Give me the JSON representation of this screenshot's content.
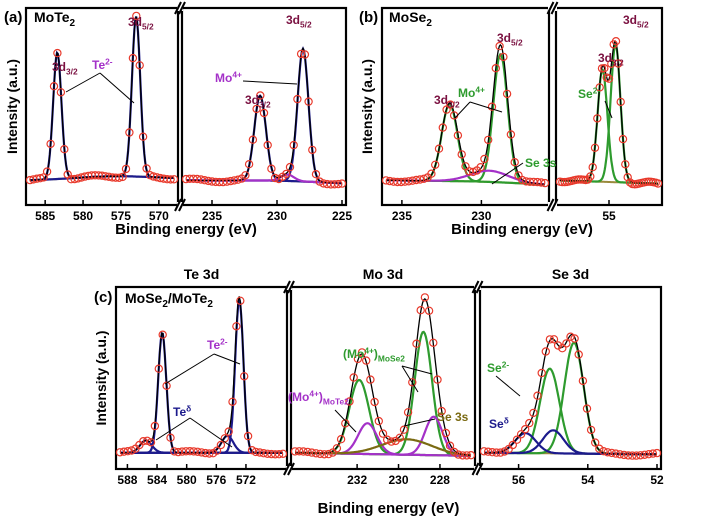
{
  "colors": {
    "frame": "#000000",
    "marker": "#e8392b",
    "fit": "#000000",
    "component": "#1c1a8c",
    "label_state": "#7a1040",
    "te": "#a431c8",
    "mo": "#2e9b2e",
    "se3s": "#7a6a12",
    "background": "#9a8a3c",
    "te_delta": "#1c1a8c",
    "se_delta": "#1c1a8c"
  },
  "chart_data": [
    {
      "id": "a",
      "panel_label": "(a)",
      "title": "MoTe",
      "title_sub": "2",
      "type": "line",
      "xlabel": "Binding energy (eV)",
      "ylabel": "Intensity (a.u.)",
      "segments": [
        {
          "xlim": [
            587,
            568
          ],
          "ticks": [
            585,
            580,
            575,
            570
          ],
          "tick_labels": [
            "585",
            "580",
            "575",
            "570"
          ],
          "peaks": [
            {
              "name": "3d3/2",
              "center": 583.4,
              "height": 0.79,
              "width": 0.55,
              "color_key": "component"
            },
            {
              "name": "3d5/2",
              "center": 573.0,
              "height": 1.0,
              "width": 0.55,
              "color_key": "component"
            }
          ],
          "background": {
            "start": 0.06,
            "end": 0.07,
            "bump_center": 576,
            "bump_height": 0.02,
            "bump_width": 5
          }
        },
        {
          "xlim": [
            237,
            225
          ],
          "ticks": [
            235,
            230,
            225
          ],
          "tick_labels": [
            "235",
            "230",
            "225"
          ],
          "peaks": [
            {
              "name": "3d3/2",
              "center": 231.3,
              "height": 0.53,
              "width": 0.45,
              "color_key": "component"
            },
            {
              "name": "3d5/2",
              "center": 228.0,
              "height": 0.83,
              "width": 0.42,
              "color_key": "component"
            },
            {
              "name": "Te2- shoulder",
              "center": 229.2,
              "height": 0.04,
              "width": 0.5,
              "color_key": "te"
            }
          ],
          "background": {
            "start": 0.06,
            "end": 0.04,
            "bump_center": 230,
            "bump_height": 0.01,
            "bump_width": 3
          }
        }
      ],
      "annotations": [
        {
          "text": "3d",
          "sub": "3/2",
          "color_key": "label_state"
        },
        {
          "text": "Te",
          "sup": "2-",
          "color_key": "te"
        },
        {
          "text": "3d",
          "sub": "5/2",
          "color_key": "label_state"
        },
        {
          "text": "Mo",
          "sup": "4+",
          "color_key": "te"
        },
        {
          "text": "3d",
          "sub": "5/2",
          "color_key": "label_state"
        },
        {
          "text": "3d",
          "sub": "3/2",
          "color_key": "label_state"
        }
      ]
    },
    {
      "id": "b",
      "panel_label": "(b)",
      "title": "MoSe",
      "title_sub": "2",
      "type": "line",
      "xlabel": "Binding energy (eV)",
      "ylabel": "Intensity (a.u.)",
      "segments": [
        {
          "xlim": [
            236,
            226
          ],
          "ticks": [
            235,
            230
          ],
          "tick_labels": [
            "235",
            "230"
          ],
          "peaks": [
            {
              "name": "3d3/2",
              "center": 232.0,
              "height": 0.48,
              "width": 0.5,
              "color_key": "mo"
            },
            {
              "name": "3d5/2",
              "center": 228.8,
              "height": 0.8,
              "width": 0.45,
              "color_key": "mo"
            },
            {
              "name": "Se 3s",
              "center": 229.5,
              "height": 0.07,
              "width": 1.2,
              "color_key": "te"
            }
          ],
          "background": {
            "start": 0.06,
            "end": 0.03,
            "bump_center": 230,
            "bump_height": 0.01,
            "bump_width": 3
          }
        },
        {
          "xlim": [
            58,
            52
          ],
          "ticks": [
            55
          ],
          "tick_labels": [
            "55"
          ],
          "peaks": [
            {
              "name": "3d3/2",
              "center": 55.4,
              "height": 0.7,
              "width": 0.3,
              "color_key": "mo"
            },
            {
              "name": "3d5/2",
              "center": 54.6,
              "height": 0.86,
              "width": 0.3,
              "color_key": "mo"
            }
          ],
          "background": {
            "start": 0.06,
            "end": 0.04,
            "bump_center": 55,
            "bump_height": 0.0,
            "bump_width": 2
          }
        }
      ],
      "annotations": [
        {
          "text": "3d",
          "sub": "3/2",
          "color_key": "label_state"
        },
        {
          "text": "Mo",
          "sup": "4+",
          "color_key": "mo"
        },
        {
          "text": "3d",
          "sub": "5/2",
          "color_key": "label_state"
        },
        {
          "text": "Se 3s",
          "color_key": "mo"
        },
        {
          "text": "3d",
          "sub": "3/2",
          "color_key": "label_state"
        },
        {
          "text": "3d",
          "sub": "5/2",
          "color_key": "label_state"
        },
        {
          "text": "Se",
          "sup": "2-",
          "color_key": "mo"
        }
      ]
    },
    {
      "id": "c",
      "panel_label": "(c)",
      "title": "MoSe",
      "title_sub": "2",
      "title_rest": "/MoTe",
      "title_sub2": "2",
      "type": "line",
      "xlabel": "Binding energy (eV)",
      "ylabel": "Intensity (a.u.)",
      "segment_titles": [
        "Te 3d",
        "Mo 3d",
        "Se 3d"
      ],
      "segments": [
        {
          "xlim": [
            589,
            567
          ],
          "ticks": [
            588,
            584,
            580,
            576,
            572
          ],
          "tick_labels": [
            "588",
            "584",
            "580",
            "576",
            "572"
          ],
          "peaks": [
            {
              "name": "Te2- 3d3/2",
              "center": 583.3,
              "height": 0.78,
              "width": 0.55,
              "color_key": "component"
            },
            {
              "name": "Te2- 3d5/2",
              "center": 572.9,
              "height": 1.0,
              "width": 0.55,
              "color_key": "component"
            },
            {
              "name": "Te delta 3d3/2",
              "center": 585.5,
              "height": 0.08,
              "width": 0.8,
              "color_key": "te_delta"
            },
            {
              "name": "Te delta 3d5/2",
              "center": 574.5,
              "height": 0.11,
              "width": 0.8,
              "color_key": "te_delta"
            }
          ],
          "background": {
            "start": 0.06,
            "end": 0.06,
            "bump_center": 578,
            "bump_height": 0.0,
            "bump_width": 5
          }
        },
        {
          "xlim": [
            235,
            226.5
          ],
          "ticks": [
            232,
            230,
            228
          ],
          "tick_labels": [
            "232",
            "230",
            "228"
          ],
          "peaks": [
            {
              "name": "MoSe2 3d3/2",
              "center": 231.9,
              "height": 0.48,
              "width": 0.48,
              "color_key": "mo"
            },
            {
              "name": "MoSe2 3d5/2",
              "center": 228.8,
              "height": 0.8,
              "width": 0.42,
              "color_key": "mo"
            },
            {
              "name": "MoTe2 3d3/2",
              "center": 231.5,
              "height": 0.2,
              "width": 0.45,
              "color_key": "te"
            },
            {
              "name": "MoTe2 3d5/2",
              "center": 228.3,
              "height": 0.25,
              "width": 0.42,
              "color_key": "te"
            },
            {
              "name": "Se 3s",
              "center": 229.6,
              "height": 0.1,
              "width": 1.2,
              "color_key": "se3s"
            }
          ],
          "background": {
            "start": 0.06,
            "end": 0.04,
            "bump_center": 230,
            "bump_height": 0.0,
            "bump_width": 3
          }
        },
        {
          "xlim": [
            57,
            52
          ],
          "ticks": [
            56,
            54,
            52
          ],
          "tick_labels": [
            "56",
            "54",
            "52"
          ],
          "peaks": [
            {
              "name": "Se2- 3d3/2",
              "center": 55.1,
              "height": 0.55,
              "width": 0.28,
              "color_key": "mo"
            },
            {
              "name": "Se2- 3d5/2",
              "center": 54.4,
              "height": 0.72,
              "width": 0.28,
              "color_key": "mo"
            },
            {
              "name": "Se delta 3d3/2",
              "center": 55.8,
              "height": 0.13,
              "width": 0.3,
              "color_key": "se_delta"
            },
            {
              "name": "Se delta 3d5/2",
              "center": 55.0,
              "height": 0.15,
              "width": 0.3,
              "color_key": "se_delta"
            }
          ],
          "background": {
            "start": 0.06,
            "end": 0.05,
            "bump_center": 55,
            "bump_height": 0.0,
            "bump_width": 2
          }
        }
      ],
      "annotations": [
        {
          "text": "Te",
          "sup": "2-",
          "color_key": "te"
        },
        {
          "text": "Te",
          "sup": "δ",
          "color_key": "te_delta"
        },
        {
          "text": "(Mo",
          "sup": "4+",
          "rest": ")",
          "sub": "MoSe2",
          "color_key": "mo"
        },
        {
          "text": "(Mo",
          "sup": "4+",
          "rest": ")",
          "sub": "MoTe2",
          "color_key": "te"
        },
        {
          "text": "Se 3s",
          "color_key": "se3s"
        },
        {
          "text": "Se",
          "sup": "2-",
          "color_key": "mo"
        },
        {
          "text": "Se",
          "sup": "δ",
          "color_key": "se_delta"
        }
      ]
    }
  ]
}
